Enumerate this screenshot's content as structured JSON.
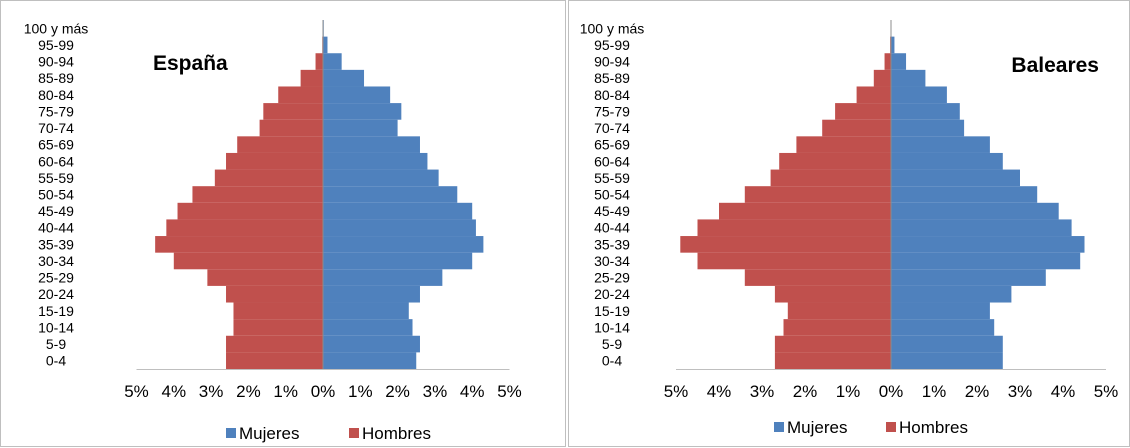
{
  "chart_data": [
    {
      "type": "bar",
      "orientation": "horizontal",
      "title": "España",
      "title_position": "top-left",
      "categories": [
        "0-4",
        "5-9",
        "10-14",
        "15-19",
        "20-24",
        "25-29",
        "30-34",
        "35-39",
        "40-44",
        "45-49",
        "50-54",
        "55-59",
        "60-64",
        "65-69",
        "70-74",
        "75-79",
        "80-84",
        "85-89",
        "90-94",
        "95-99",
        "100 y más"
      ],
      "series": [
        {
          "name": "Mujeres",
          "color": "#4f81bd",
          "values": [
            2.5,
            2.6,
            2.4,
            2.3,
            2.6,
            3.2,
            4.0,
            4.3,
            4.1,
            4.0,
            3.6,
            3.1,
            2.8,
            2.6,
            2.0,
            2.1,
            1.8,
            1.1,
            0.5,
            0.12,
            0.02
          ]
        },
        {
          "name": "Hombres",
          "color": "#c0504d",
          "values": [
            2.6,
            2.6,
            2.4,
            2.4,
            2.6,
            3.1,
            4.0,
            4.5,
            4.2,
            3.9,
            3.5,
            2.9,
            2.6,
            2.3,
            1.7,
            1.6,
            1.2,
            0.6,
            0.2,
            0.02,
            0.0
          ]
        }
      ],
      "xlim": [
        -5,
        5
      ],
      "xticks": [
        "5%",
        "4%",
        "3%",
        "2%",
        "1%",
        "0%",
        "1%",
        "2%",
        "3%",
        "4%",
        "5%"
      ],
      "legend": "bottom",
      "grid": false
    },
    {
      "type": "bar",
      "orientation": "horizontal",
      "title": "Baleares",
      "title_position": "top-right",
      "categories": [
        "0-4",
        "5-9",
        "10-14",
        "15-19",
        "20-24",
        "25-29",
        "30-34",
        "35-39",
        "40-44",
        "45-49",
        "50-54",
        "55-59",
        "60-64",
        "65-69",
        "70-74",
        "75-79",
        "80-84",
        "85-89",
        "90-94",
        "95-99",
        "100 y más"
      ],
      "series": [
        {
          "name": "Mujeres",
          "color": "#4f81bd",
          "values": [
            2.6,
            2.6,
            2.4,
            2.3,
            2.8,
            3.6,
            4.4,
            4.5,
            4.2,
            3.9,
            3.4,
            3.0,
            2.6,
            2.3,
            1.7,
            1.6,
            1.3,
            0.8,
            0.35,
            0.08,
            0.01
          ]
        },
        {
          "name": "Hombres",
          "color": "#c0504d",
          "values": [
            2.7,
            2.7,
            2.5,
            2.4,
            2.7,
            3.4,
            4.5,
            4.9,
            4.5,
            4.0,
            3.4,
            2.8,
            2.6,
            2.2,
            1.6,
            1.3,
            0.8,
            0.4,
            0.15,
            0.02,
            0.0
          ]
        }
      ],
      "xlim": [
        -5,
        5
      ],
      "xticks": [
        "5%",
        "4%",
        "3%",
        "2%",
        "1%",
        "0%",
        "1%",
        "2%",
        "3%",
        "4%",
        "5%"
      ],
      "legend": "bottom",
      "grid": false
    }
  ]
}
